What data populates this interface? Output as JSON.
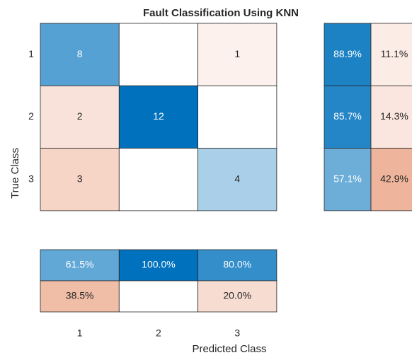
{
  "chart_data": {
    "type": "confusion",
    "title": "Fault Classification Using KNN",
    "xlabel": "Predicted Class",
    "ylabel": "True Class",
    "categories": [
      "1",
      "2",
      "3"
    ],
    "matrix": [
      [
        8,
        0,
        1
      ],
      [
        2,
        12,
        0
      ],
      [
        3,
        0,
        4
      ]
    ],
    "matrix_labels": [
      [
        "8",
        null,
        "1"
      ],
      [
        "2",
        "12",
        null
      ],
      [
        "3",
        null,
        "4"
      ]
    ],
    "row_summary": {
      "values": [
        [
          88.9,
          11.1
        ],
        [
          85.7,
          14.3
        ],
        [
          57.1,
          42.9
        ]
      ],
      "value_labels": [
        [
          "88.9%",
          "11.1%"
        ],
        [
          "85.7%",
          "14.3%"
        ],
        [
          "57.1%",
          "42.9%"
        ]
      ]
    },
    "column_summary": {
      "values": [
        [
          61.5,
          100.0,
          80.0
        ],
        [
          38.5,
          0,
          20.0
        ]
      ],
      "value_labels": [
        [
          "61.5%",
          "100.0%",
          "80.0%"
        ],
        [
          "38.5%",
          null,
          "20.0%"
        ]
      ]
    },
    "diagonal_color": "#0072bd",
    "off_diagonal_color": "#d95319"
  }
}
